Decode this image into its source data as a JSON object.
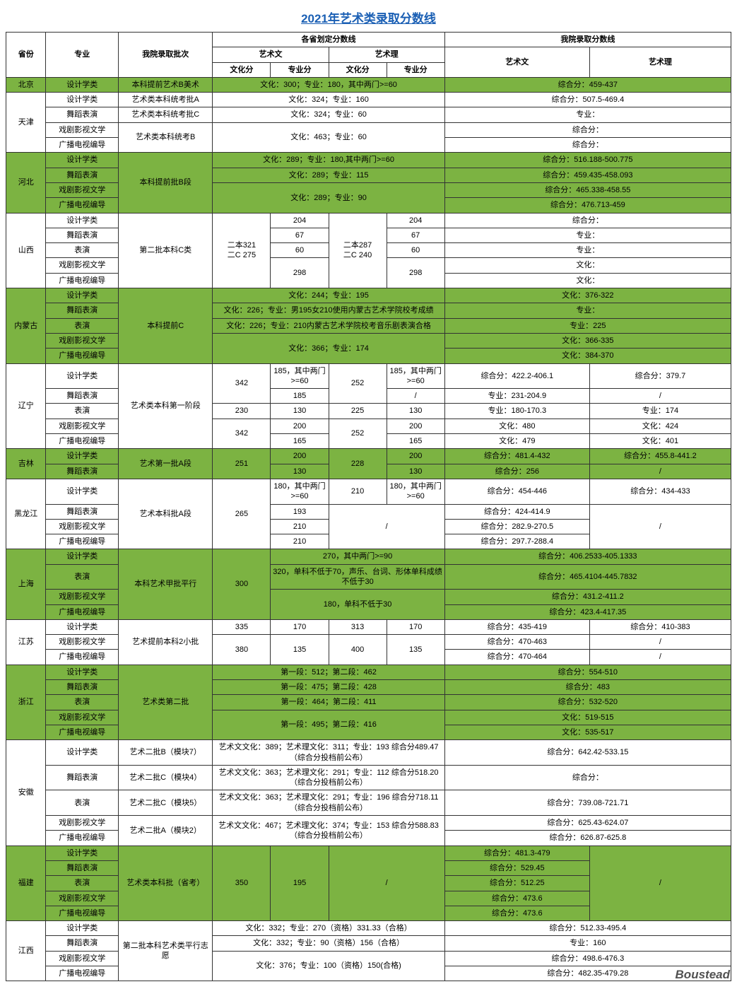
{
  "title": "2021年艺术类录取分数线",
  "watermark": "Boustead",
  "colors": {
    "green": "#7cb342",
    "white": "#ffffff",
    "title": "#1a5fb4"
  },
  "header": {
    "province": "省份",
    "major": "专业",
    "batch": "我院录取批次",
    "prov_line": "各省划定分数线",
    "our_line": "我院录取分数线",
    "art_wen": "艺术文",
    "art_li": "艺术理",
    "wenhua": "文化分",
    "zhuanye": "专业分"
  },
  "rows": [
    {
      "alt": 1,
      "prov": "北京",
      "majors": [
        "设计学类"
      ],
      "batch": [
        "本科提前艺术B美术"
      ],
      "prov_cells": [
        {
          "c": 4,
          "t": "文化：300；专业：180，其中两门>=60"
        }
      ],
      "our_cells": [
        {
          "c": 2,
          "t": "综合分：459-437"
        }
      ]
    },
    {
      "alt": 0,
      "prov": "天津",
      "majors": [
        "设计学类",
        "舞蹈表演",
        "戏剧影视文学",
        "广播电视编导"
      ],
      "batch": [
        "艺术类本科统考批A",
        "艺术类本科统考批C",
        {
          "t": "艺术类本科统考B",
          "r": 2
        }
      ],
      "prov_cells": [
        [
          {
            "c": 4,
            "t": "文化：324；专业：160"
          }
        ],
        [
          {
            "c": 4,
            "t": "文化：324；专业：60"
          }
        ],
        [
          {
            "c": 4,
            "r": 2,
            "t": "文化：463；专业：60"
          }
        ]
      ],
      "our_cells": [
        [
          {
            "c": 2,
            "t": "综合分：507.5-469.4"
          }
        ],
        [
          {
            "c": 2,
            "t": "专业："
          }
        ],
        [
          {
            "c": 2,
            "t": "综合分："
          }
        ],
        [
          {
            "c": 2,
            "t": "综合分："
          }
        ]
      ]
    },
    {
      "alt": 1,
      "prov": "河北",
      "majors": [
        "设计学类",
        "舞蹈表演",
        "戏剧影视文学",
        "广播电视编导"
      ],
      "batch": [
        {
          "t": "本科提前批B段",
          "r": 4
        }
      ],
      "prov_cells": [
        [
          {
            "c": 4,
            "t": "文化：289；专业：180,其中两门>=60"
          }
        ],
        [
          {
            "c": 4,
            "t": "文化：289；专业：115"
          }
        ],
        [
          {
            "c": 4,
            "r": 2,
            "t": "文化：289；专业：90"
          }
        ]
      ],
      "our_cells": [
        [
          {
            "c": 2,
            "t": "综合分：516.188-500.775"
          }
        ],
        [
          {
            "c": 2,
            "t": "综合分：459.435-458.093"
          }
        ],
        [
          {
            "c": 2,
            "t": "综合分：465.338-458.55"
          }
        ],
        [
          {
            "c": 2,
            "t": "综合分：476.713-459"
          }
        ]
      ]
    },
    {
      "alt": 0,
      "prov": "山西",
      "majors": [
        "设计学类",
        "舞蹈表演",
        "表演",
        "戏剧影视文学",
        "广播电视编导"
      ],
      "batch": [
        {
          "t": "第二批本科C类",
          "r": 5
        }
      ],
      "prov_cells": [
        [
          {
            "c": 1,
            "r": 5,
            "t": "二本321\n二C 275"
          },
          {
            "c": 1,
            "t": "204"
          },
          {
            "c": 1,
            "r": 5,
            "t": "二本287\n二C 240"
          },
          {
            "c": 1,
            "t": "204"
          }
        ],
        [
          {
            "c": 1,
            "t": "67"
          },
          {
            "c": 1,
            "t": "67"
          }
        ],
        [
          {
            "c": 1,
            "t": "60"
          },
          {
            "c": 1,
            "t": "60"
          }
        ],
        [
          {
            "c": 1,
            "r": 2,
            "t": "298"
          },
          {
            "c": 1,
            "r": 2,
            "t": "298"
          }
        ]
      ],
      "our_cells": [
        [
          {
            "c": 2,
            "t": "综合分："
          }
        ],
        [
          {
            "c": 2,
            "t": "专业："
          }
        ],
        [
          {
            "c": 2,
            "t": "专业："
          }
        ],
        [
          {
            "c": 2,
            "t": "文化："
          }
        ],
        [
          {
            "c": 2,
            "t": "文化："
          }
        ]
      ]
    },
    {
      "alt": 1,
      "prov": "内蒙古",
      "majors": [
        "设计学类",
        "舞蹈表演",
        "表演",
        "戏剧影视文学",
        "广播电视编导"
      ],
      "batch": [
        {
          "t": "本科提前C",
          "r": 5
        }
      ],
      "prov_cells": [
        [
          {
            "c": 4,
            "t": "文化：244；专业：195"
          }
        ],
        [
          {
            "c": 4,
            "t": "文化：226；专业：男195女210使用内蒙古艺术学院校考成绩"
          }
        ],
        [
          {
            "c": 4,
            "t": "文化：226；专业：210内蒙古艺术学院校考音乐剧表演合格"
          }
        ],
        [
          {
            "c": 4,
            "r": 2,
            "t": "文化：366；专业：174"
          }
        ]
      ],
      "our_cells": [
        [
          {
            "c": 2,
            "t": "文化：376-322"
          }
        ],
        [
          {
            "c": 2,
            "t": "专业："
          }
        ],
        [
          {
            "c": 2,
            "t": "专业：225"
          }
        ],
        [
          {
            "c": 2,
            "t": "文化：366-335"
          }
        ],
        [
          {
            "c": 2,
            "t": "文化：384-370"
          }
        ]
      ]
    },
    {
      "alt": 0,
      "prov": "辽宁",
      "majors": [
        "设计学类",
        "舞蹈表演",
        "表演",
        "戏剧影视文学",
        "广播电视编导"
      ],
      "batch": [
        {
          "t": "艺术类本科第一阶段",
          "r": 5
        }
      ],
      "prov_cells": [
        [
          {
            "c": 1,
            "r": 2,
            "t": "342"
          },
          {
            "c": 1,
            "t": "185，其中两门>=60"
          },
          {
            "c": 1,
            "r": 2,
            "t": "252"
          },
          {
            "c": 1,
            "t": "185，其中两门>=60"
          }
        ],
        [
          {
            "c": 1,
            "t": "185"
          },
          {
            "c": 1,
            "t": "/"
          }
        ],
        [
          {
            "c": 1,
            "t": "230"
          },
          {
            "c": 1,
            "t": "130"
          },
          {
            "c": 1,
            "t": "225"
          },
          {
            "c": 1,
            "t": "130"
          }
        ],
        [
          {
            "c": 1,
            "r": 2,
            "t": "342"
          },
          {
            "c": 1,
            "t": "200"
          },
          {
            "c": 1,
            "r": 2,
            "t": "252"
          },
          {
            "c": 1,
            "t": "200"
          }
        ],
        [
          {
            "c": 1,
            "t": "165"
          },
          {
            "c": 1,
            "t": "165"
          }
        ]
      ],
      "our_cells": [
        [
          {
            "c": 1,
            "t": "综合分：422.2-406.1"
          },
          {
            "c": 1,
            "t": "综合分：379.7"
          }
        ],
        [
          {
            "c": 1,
            "t": "专业：231-204.9"
          },
          {
            "c": 1,
            "t": "/"
          }
        ],
        [
          {
            "c": 1,
            "t": "专业：180-170.3"
          },
          {
            "c": 1,
            "t": "专业：174"
          }
        ],
        [
          {
            "c": 1,
            "t": "文化：480"
          },
          {
            "c": 1,
            "t": "文化：424"
          }
        ],
        [
          {
            "c": 1,
            "t": "文化：479"
          },
          {
            "c": 1,
            "t": "文化：401"
          }
        ]
      ]
    },
    {
      "alt": 1,
      "prov": "吉林",
      "majors": [
        "设计学类",
        "舞蹈表演"
      ],
      "batch": [
        {
          "t": "艺术第一批A段",
          "r": 2
        }
      ],
      "prov_cells": [
        [
          {
            "c": 1,
            "r": 2,
            "t": "251"
          },
          {
            "c": 1,
            "t": "200"
          },
          {
            "c": 1,
            "r": 2,
            "t": "228"
          },
          {
            "c": 1,
            "t": "200"
          }
        ],
        [
          {
            "c": 1,
            "t": "130"
          },
          {
            "c": 1,
            "t": "130"
          }
        ]
      ],
      "our_cells": [
        [
          {
            "c": 1,
            "t": "综合分：481.4-432"
          },
          {
            "c": 1,
            "t": "综合分：455.8-441.2"
          }
        ],
        [
          {
            "c": 1,
            "t": "综合分：256"
          },
          {
            "c": 1,
            "t": "/"
          }
        ]
      ]
    },
    {
      "alt": 0,
      "prov": "黑龙江",
      "majors": [
        "设计学类",
        "舞蹈表演",
        "戏剧影视文学",
        "广播电视编导"
      ],
      "batch": [
        {
          "t": "艺术本科批A段",
          "r": 4
        }
      ],
      "prov_cells": [
        [
          {
            "c": 1,
            "r": 4,
            "t": "265"
          },
          {
            "c": 1,
            "t": "180，其中两门>=60"
          },
          {
            "c": 1,
            "t": "210"
          },
          {
            "c": 1,
            "t": "180，其中两门>=60"
          }
        ],
        [
          {
            "c": 1,
            "t": "193"
          },
          {
            "c": 2,
            "r": 3,
            "t": "/"
          }
        ],
        [
          {
            "c": 1,
            "t": "210"
          }
        ],
        [
          {
            "c": 1,
            "t": "210"
          }
        ]
      ],
      "our_cells": [
        [
          {
            "c": 1,
            "t": "综合分：454-446"
          },
          {
            "c": 1,
            "t": "综合分：434-433"
          }
        ],
        [
          {
            "c": 1,
            "t": "综合分：424-414.9"
          },
          {
            "c": 1,
            "r": 3,
            "t": "/"
          }
        ],
        [
          {
            "c": 1,
            "t": "综合分：282.9-270.5"
          }
        ],
        [
          {
            "c": 1,
            "t": "综合分：297.7-288.4"
          }
        ]
      ]
    },
    {
      "alt": 1,
      "prov": "上海",
      "majors": [
        "设计学类",
        "表演",
        "戏剧影视文学",
        "广播电视编导"
      ],
      "batch": [
        {
          "t": "本科艺术甲批平行",
          "r": 4
        }
      ],
      "prov_cells": [
        [
          {
            "c": 1,
            "r": 4,
            "t": "300"
          },
          {
            "c": 3,
            "t": "270，其中两门>=90"
          }
        ],
        [
          {
            "c": 3,
            "t": "320，单科不低于70，声乐、台词、形体单科成绩不低于30"
          }
        ],
        [
          {
            "c": 3,
            "r": 2,
            "t": "180，单科不低于30"
          }
        ]
      ],
      "our_cells": [
        [
          {
            "c": 2,
            "t": "综合分：406.2533-405.1333"
          }
        ],
        [
          {
            "c": 2,
            "t": "综合分：465.4104-445.7832"
          }
        ],
        [
          {
            "c": 2,
            "t": "综合分：431.2-411.2"
          }
        ],
        [
          {
            "c": 2,
            "t": "综合分：423.4-417.35"
          }
        ]
      ]
    },
    {
      "alt": 0,
      "prov": "江苏",
      "majors": [
        "设计学类",
        "戏剧影视文学",
        "广播电视编导"
      ],
      "batch": [
        {
          "t": "艺术提前本科2小批",
          "r": 3
        }
      ],
      "prov_cells": [
        [
          {
            "c": 1,
            "t": "335"
          },
          {
            "c": 1,
            "t": "170"
          },
          {
            "c": 1,
            "t": "313"
          },
          {
            "c": 1,
            "t": "170"
          }
        ],
        [
          {
            "c": 1,
            "r": 2,
            "t": "380"
          },
          {
            "c": 1,
            "r": 2,
            "t": "135"
          },
          {
            "c": 1,
            "r": 2,
            "t": "400"
          },
          {
            "c": 1,
            "r": 2,
            "t": "135"
          }
        ]
      ],
      "our_cells": [
        [
          {
            "c": 1,
            "t": "综合分：435-419"
          },
          {
            "c": 1,
            "t": "综合分：410-383"
          }
        ],
        [
          {
            "c": 1,
            "t": "综合分：470-463"
          },
          {
            "c": 1,
            "t": "/"
          }
        ],
        [
          {
            "c": 1,
            "t": "综合分：470-464"
          },
          {
            "c": 1,
            "t": "/"
          }
        ]
      ]
    },
    {
      "alt": 1,
      "prov": "浙江",
      "majors": [
        "设计学类",
        "舞蹈表演",
        "表演",
        "戏剧影视文学",
        "广播电视编导"
      ],
      "batch": [
        {
          "t": "艺术类第二批",
          "r": 5
        }
      ],
      "prov_cells": [
        [
          {
            "c": 4,
            "t": "第一段：512；第二段：462"
          }
        ],
        [
          {
            "c": 4,
            "t": "第一段：475；第二段：428"
          }
        ],
        [
          {
            "c": 4,
            "t": "第一段：464；第二段：411"
          }
        ],
        [
          {
            "c": 4,
            "r": 2,
            "t": "第一段：495；第二段：416"
          }
        ]
      ],
      "our_cells": [
        [
          {
            "c": 2,
            "t": "综合分：554-510"
          }
        ],
        [
          {
            "c": 2,
            "t": "综合分：483"
          }
        ],
        [
          {
            "c": 2,
            "t": "综合分：532-520"
          }
        ],
        [
          {
            "c": 2,
            "t": "文化：519-515"
          }
        ],
        [
          {
            "c": 2,
            "t": "文化：535-517"
          }
        ]
      ]
    },
    {
      "alt": 0,
      "prov": "安徽",
      "majors": [
        "设计学类",
        "舞蹈表演",
        "表演",
        "戏剧影视文学",
        "广播电视编导"
      ],
      "batch": [
        "艺术二批B（模块7）",
        "艺术二批C（模块4）",
        "艺术二批C（模块5）",
        {
          "t": "艺术二批A（模块2）",
          "r": 2
        }
      ],
      "prov_cells": [
        [
          {
            "c": 4,
            "t": "艺术文文化：389；艺术理文化：311；专业：193 综合分489.47（综合分投档前公布）"
          }
        ],
        [
          {
            "c": 4,
            "t": "艺术文文化：363；艺术理文化：291；专业：112 综合分518.20（综合分投档前公布）"
          }
        ],
        [
          {
            "c": 4,
            "t": "艺术文文化：363；艺术理文化：291；专业：196 综合分718.11（综合分投档前公布）"
          }
        ],
        [
          {
            "c": 4,
            "r": 2,
            "t": "艺术文文化：467；艺术理文化：374；专业：153 综合分588.83（综合分投档前公布）"
          }
        ]
      ],
      "our_cells": [
        [
          {
            "c": 2,
            "t": "综合分：642.42-533.15"
          }
        ],
        [
          {
            "c": 2,
            "t": "综合分："
          }
        ],
        [
          {
            "c": 2,
            "t": "综合分：739.08-721.71"
          }
        ],
        [
          {
            "c": 2,
            "t": "综合分：625.43-624.07"
          }
        ],
        [
          {
            "c": 2,
            "t": "综合分：626.87-625.8"
          }
        ]
      ]
    },
    {
      "alt": 1,
      "prov": "福建",
      "majors": [
        "设计学类",
        "舞蹈表演",
        "表演",
        "戏剧影视文学",
        "广播电视编导"
      ],
      "batch": [
        {
          "t": "艺术类本科批（省考）",
          "r": 5
        }
      ],
      "prov_cells": [
        [
          {
            "c": 1,
            "r": 5,
            "t": "350"
          },
          {
            "c": 1,
            "r": 5,
            "t": "195"
          },
          {
            "c": 2,
            "r": 5,
            "t": "/"
          }
        ]
      ],
      "our_cells": [
        [
          {
            "c": 1,
            "t": "综合分：481.3-479"
          },
          {
            "c": 1,
            "r": 5,
            "t": "/"
          }
        ],
        [
          {
            "c": 1,
            "t": "综合分：529.45"
          }
        ],
        [
          {
            "c": 1,
            "t": "综合分：512.25"
          }
        ],
        [
          {
            "c": 1,
            "t": "综合分：473.6"
          }
        ],
        [
          {
            "c": 1,
            "t": "综合分：473.6"
          }
        ]
      ]
    },
    {
      "alt": 0,
      "prov": "江西",
      "majors": [
        "设计学类",
        "舞蹈表演",
        "戏剧影视文学",
        "广播电视编导"
      ],
      "batch": [
        {
          "t": "第二批本科艺术类平行志愿",
          "r": 4
        }
      ],
      "prov_cells": [
        [
          {
            "c": 4,
            "t": "文化：332；专业：270（资格）331.33（合格）"
          }
        ],
        [
          {
            "c": 4,
            "t": "文化：332；专业：90（资格）156（合格）"
          }
        ],
        [
          {
            "c": 4,
            "r": 2,
            "t": "文化：376；专业：100（资格）150(合格)"
          }
        ]
      ],
      "our_cells": [
        [
          {
            "c": 2,
            "t": "综合分：512.33-495.4"
          }
        ],
        [
          {
            "c": 2,
            "t": "专业：160"
          }
        ],
        [
          {
            "c": 2,
            "t": "综合分：498.6-476.3"
          }
        ],
        [
          {
            "c": 2,
            "t": "综合分：482.35-479.28"
          }
        ]
      ]
    }
  ]
}
